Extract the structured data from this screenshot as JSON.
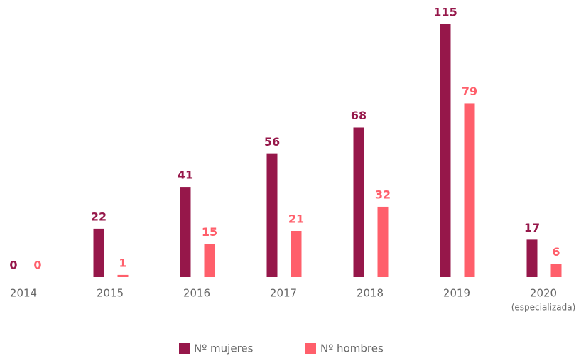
{
  "chart_data": {
    "type": "bar",
    "categories": [
      "2014",
      "2015",
      "2016",
      "2017",
      "2018",
      "2019",
      "2020"
    ],
    "x_sublabel": "(especializada)",
    "series": [
      {
        "name": "Nº mujeres",
        "color": "#96174a",
        "values": [
          0,
          22,
          41,
          56,
          68,
          115,
          17
        ]
      },
      {
        "name": "Nº hombres",
        "color": "#ff5f6b",
        "values": [
          0,
          1,
          15,
          21,
          32,
          79,
          6
        ]
      }
    ],
    "ylim": [
      0,
      115
    ],
    "grid": false,
    "legend": "bottom"
  }
}
